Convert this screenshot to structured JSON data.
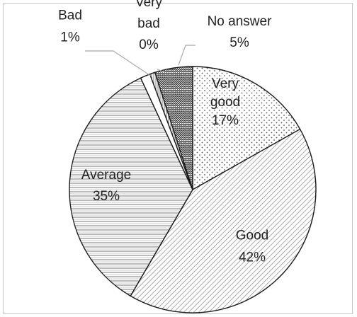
{
  "chart_data": {
    "type": "pie",
    "title": "",
    "slices": [
      {
        "name": "Very good",
        "value": 17,
        "label_lines": [
          "Very",
          "good",
          "17%"
        ],
        "pattern": "dots"
      },
      {
        "name": "Good",
        "value": 42,
        "label_lines": [
          "Good",
          "42%"
        ],
        "pattern": "diag"
      },
      {
        "name": "Average",
        "value": 35,
        "label_lines": [
          "Average",
          "35%"
        ],
        "pattern": "horiz"
      },
      {
        "name": "Bad",
        "value": 1,
        "label_lines": [
          "Bad",
          "1%"
        ],
        "pattern": "plain"
      },
      {
        "name": "Very bad",
        "value": 0,
        "label_lines": [
          "Very",
          "bad",
          "0%"
        ],
        "pattern": "vert"
      },
      {
        "name": "No answer",
        "value": 5,
        "label_lines": [
          "No answer",
          "5%"
        ],
        "pattern": "zigzag"
      }
    ],
    "legend": "none",
    "grid": false
  }
}
